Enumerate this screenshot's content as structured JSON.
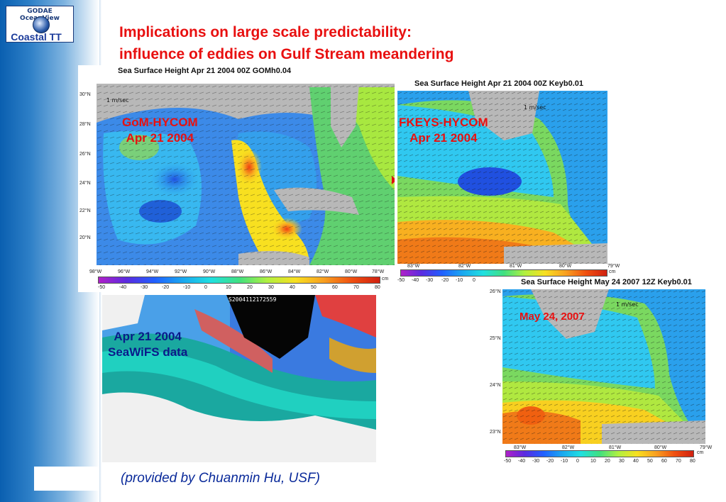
{
  "logo": {
    "top_text": "GODAE OceanView",
    "bottom_text": "Coastal TT"
  },
  "title": {
    "line1": "Implications on large scale predictability:",
    "line2": "influence of eddies on Gulf Stream meandering"
  },
  "credit": "(provided by Chuanmin Hu, USF)",
  "panels": {
    "gom": {
      "title": "Sea Surface Height Apr 21 2004 00Z GOMh0.04",
      "label_line1": "GoM-HYCOM",
      "label_line2": "Apr 21 2004",
      "scale": "1 m/sec",
      "lat_ticks": [
        "30°N",
        "28°N",
        "26°N",
        "24°N",
        "22°N",
        "20°N"
      ],
      "lon_ticks": [
        "98°W",
        "96°W",
        "94°W",
        "92°W",
        "90°W",
        "88°W",
        "86°W",
        "84°W",
        "82°W",
        "80°W",
        "78°W"
      ],
      "cbar_ticks": [
        "-50",
        "-40",
        "-30",
        "-20",
        "-10",
        "0",
        "10",
        "20",
        "30",
        "40",
        "50",
        "60",
        "70",
        "80"
      ],
      "unit": "cm"
    },
    "fkeys": {
      "title": "Sea Surface Height Apr 21 2004 00Z  Keyb0.01",
      "label_line1": "FKEYS-HYCOM",
      "label_line2": "Apr 21 2004",
      "scale": "1 m/sec",
      "lon_ticks": [
        "83°W",
        "82°W",
        "81°W",
        "80°W",
        "79°W"
      ],
      "cbar_ticks": [
        "-50",
        "-40",
        "-30",
        "-20",
        "-10",
        "0"
      ],
      "unit": "cm"
    },
    "may": {
      "title": "Sea Surface Height May 24 2007 12Z  Keyb0.01",
      "label": "May 24, 2007",
      "scale": "1 m/sec",
      "lat_ticks": [
        "26°N",
        "25°N",
        "24°N",
        "23°N"
      ],
      "lon_ticks": [
        "83°W",
        "82°W",
        "81°W",
        "80°W",
        "79°W"
      ],
      "cbar_ticks": [
        "-50",
        "-40",
        "-30",
        "-20",
        "-10",
        "0",
        "10",
        "20",
        "30",
        "40",
        "50",
        "60",
        "70",
        "80"
      ],
      "unit": "cm"
    },
    "seawifs": {
      "stamp": "S2004112172559",
      "label_line1": "Apr 21 2004",
      "label_line2": "SeaWiFS data"
    }
  },
  "colors": {
    "title_red": "#e81010",
    "label_blue": "#0a2a9a",
    "sidebar_blue": "#0a5fb0"
  }
}
